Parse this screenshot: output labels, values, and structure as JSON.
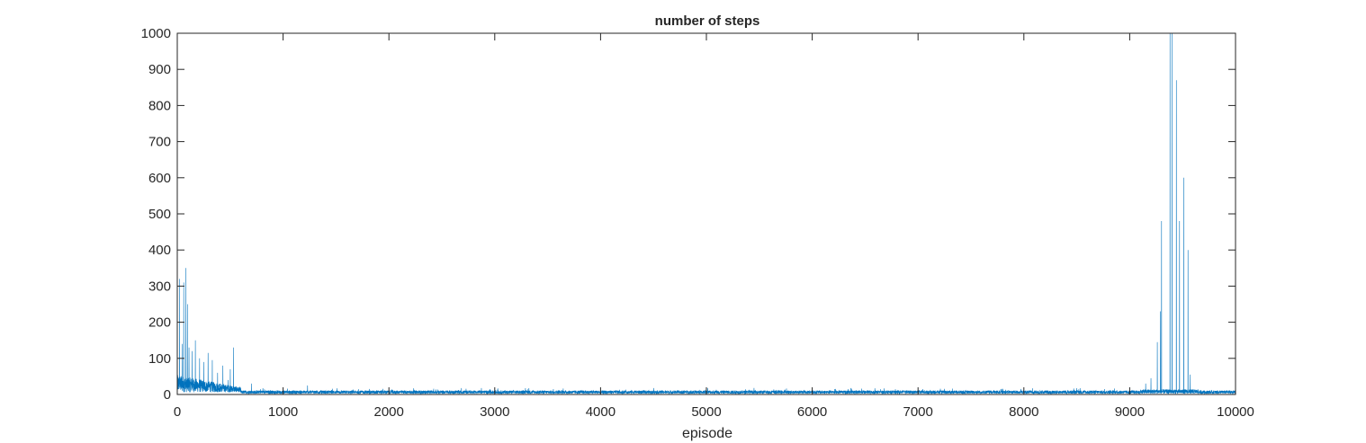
{
  "chart_data": {
    "type": "line",
    "title": "number of steps",
    "xlabel": "episode",
    "ylabel": "",
    "xlim": [
      0,
      10000
    ],
    "ylim": [
      0,
      1000
    ],
    "xticks": [
      0,
      1000,
      2000,
      3000,
      4000,
      5000,
      6000,
      7000,
      8000,
      9000,
      10000
    ],
    "yticks": [
      0,
      100,
      200,
      300,
      400,
      500,
      600,
      700,
      800,
      900,
      1000
    ],
    "grid": false,
    "colors": {
      "line": "#0072BD",
      "axes": "#262626"
    },
    "series": [
      {
        "name": "",
        "episodes": 10000,
        "peaks": [
          {
            "x": 20,
            "y": 320
          },
          {
            "x": 45,
            "y": 140
          },
          {
            "x": 60,
            "y": 310
          },
          {
            "x": 80,
            "y": 350
          },
          {
            "x": 95,
            "y": 250
          },
          {
            "x": 110,
            "y": 130
          },
          {
            "x": 140,
            "y": 120
          },
          {
            "x": 170,
            "y": 150
          },
          {
            "x": 210,
            "y": 100
          },
          {
            "x": 250,
            "y": 90
          },
          {
            "x": 290,
            "y": 115
          },
          {
            "x": 330,
            "y": 95
          },
          {
            "x": 380,
            "y": 60
          },
          {
            "x": 430,
            "y": 80
          },
          {
            "x": 480,
            "y": 40
          },
          {
            "x": 500,
            "y": 70
          },
          {
            "x": 530,
            "y": 130
          },
          {
            "x": 700,
            "y": 30
          },
          {
            "x": 1230,
            "y": 25
          },
          {
            "x": 9150,
            "y": 30
          },
          {
            "x": 9200,
            "y": 45
          },
          {
            "x": 9260,
            "y": 145
          },
          {
            "x": 9290,
            "y": 230
          },
          {
            "x": 9300,
            "y": 480
          },
          {
            "x": 9380,
            "y": 1000
          },
          {
            "x": 9400,
            "y": 1000
          },
          {
            "x": 9440,
            "y": 870
          },
          {
            "x": 9470,
            "y": 480
          },
          {
            "x": 9510,
            "y": 600
          },
          {
            "x": 9550,
            "y": 400
          },
          {
            "x": 9570,
            "y": 55
          }
        ]
      }
    ]
  }
}
